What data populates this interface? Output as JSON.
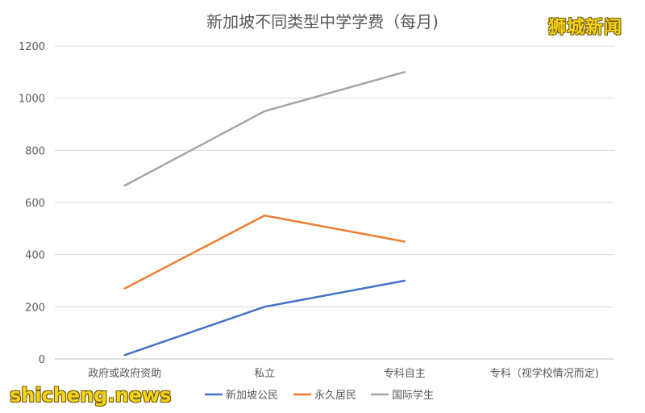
{
  "watermark_top": "狮城新闻",
  "watermark_bottom": "shicheng.news",
  "chart_data": {
    "type": "line",
    "title": "新加坡不同类型中学学费（每月)",
    "categories": [
      "政府或政府资助",
      "私立",
      "专科自主",
      "专科（视学校情况而定)"
    ],
    "ylim": [
      0,
      1200
    ],
    "yticks": [
      0,
      200,
      400,
      600,
      800,
      1000,
      1200
    ],
    "grid": true,
    "legend_position": "bottom",
    "series": [
      {
        "name": "新加坡公民",
        "color": "#4472c4",
        "values": [
          15,
          200,
          300,
          null
        ]
      },
      {
        "name": "永久居民",
        "color": "#ed7d31",
        "values": [
          270,
          550,
          450,
          null
        ]
      },
      {
        "name": "国际学生",
        "color": "#a5a5a5",
        "values": [
          665,
          950,
          1100,
          null
        ]
      }
    ]
  }
}
